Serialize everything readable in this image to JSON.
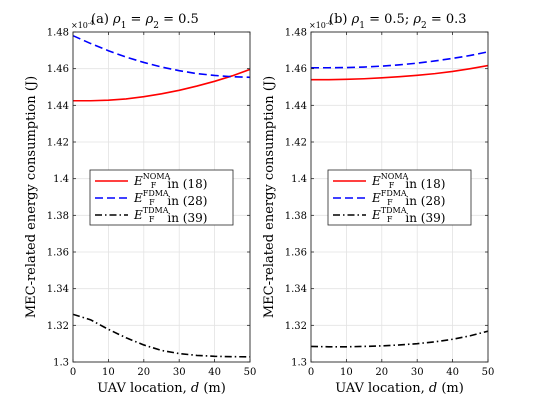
{
  "chart_data": [
    {
      "type": "line",
      "panel_label": "(a)",
      "title_tex": "ρ1 = ρ2 = 0.5",
      "title_parts": [
        "(a) ",
        "ρ",
        "1",
        " = ",
        "ρ",
        "2",
        " = 0.5"
      ],
      "xlabel": "UAV location, d (m)",
      "ylabel": "MEC-related energy consumption (J)",
      "y_exponent": "×10-4",
      "xlim": [
        0,
        50
      ],
      "ylim": [
        1.3,
        1.48
      ],
      "xticks": [
        0,
        10,
        20,
        30,
        40,
        50
      ],
      "yticks": [
        1.3,
        1.32,
        1.34,
        1.36,
        1.38,
        1.4,
        1.42,
        1.44,
        1.46,
        1.48
      ],
      "ytick_labels": [
        "1.3",
        "1.32",
        "1.34",
        "1.36",
        "1.38",
        "1.4",
        "1.42",
        "1.44",
        "1.46",
        "1.48"
      ],
      "grid": true,
      "legend_position": "center",
      "x": [
        0,
        5,
        10,
        15,
        20,
        25,
        30,
        35,
        40,
        45,
        50
      ],
      "series": [
        {
          "name": "E_F^NOMA in (18)",
          "base": "E",
          "sup": "NOMA",
          "sub": "F",
          "suffix": " in (18)",
          "color": "#ff0000",
          "dash": "solid",
          "values": [
            1.4425,
            1.4425,
            1.4428,
            1.4435,
            1.4447,
            1.4463,
            1.4482,
            1.4505,
            1.4531,
            1.4561,
            1.4596
          ]
        },
        {
          "name": "E_F^FDMA in (28)",
          "base": "E",
          "sup": "FDMA",
          "sub": "F",
          "suffix": " in (28)",
          "color": "#0000ff",
          "dash": "dashed",
          "values": [
            1.478,
            1.4737,
            1.4698,
            1.4663,
            1.4634,
            1.4609,
            1.4589,
            1.4573,
            1.4563,
            1.4556,
            1.4553
          ]
        },
        {
          "name": "E_F^TDMA in (39)",
          "base": "E",
          "sup": "TDMA",
          "sub": "F",
          "suffix": " in (39)",
          "color": "#000000",
          "dash": "dashdot",
          "values": [
            1.326,
            1.323,
            1.3178,
            1.3132,
            1.3093,
            1.3063,
            1.3046,
            1.3036,
            1.3031,
            1.3029,
            1.3028
          ]
        }
      ]
    },
    {
      "type": "line",
      "panel_label": "(b)",
      "title_tex": "ρ1 = 0.5; ρ2 = 0.3",
      "title_parts": [
        "(b) ",
        "ρ",
        "1",
        " = 0.5; ",
        "ρ",
        "2",
        " = 0.3"
      ],
      "xlabel": "UAV location, d (m)",
      "ylabel": "MEC-related energy consumption (J)",
      "y_exponent": "×10-4",
      "xlim": [
        0,
        50
      ],
      "ylim": [
        1.3,
        1.48
      ],
      "xticks": [
        0,
        10,
        20,
        30,
        40,
        50
      ],
      "yticks": [
        1.3,
        1.32,
        1.34,
        1.36,
        1.38,
        1.4,
        1.42,
        1.44,
        1.46,
        1.48
      ],
      "ytick_labels": [
        "1.3",
        "1.32",
        "1.34",
        "1.36",
        "1.38",
        "1.4",
        "1.42",
        "1.44",
        "1.46",
        "1.48"
      ],
      "grid": true,
      "legend_position": "center",
      "x": [
        0,
        5,
        10,
        15,
        20,
        25,
        30,
        35,
        40,
        45,
        50
      ],
      "series": [
        {
          "name": "E_F^NOMA in (18)",
          "base": "E",
          "sup": "NOMA",
          "sub": "F",
          "suffix": " in (18)",
          "color": "#ff0000",
          "dash": "solid",
          "values": [
            1.454,
            1.454,
            1.4542,
            1.4545,
            1.455,
            1.4556,
            1.4564,
            1.4573,
            1.4585,
            1.46,
            1.4617
          ]
        },
        {
          "name": "E_F^FDMA in (28)",
          "base": "E",
          "sup": "FDMA",
          "sub": "F",
          "suffix": " in (28)",
          "color": "#0000ff",
          "dash": "dashed",
          "values": [
            1.4605,
            1.4605,
            1.4606,
            1.4609,
            1.4614,
            1.4621,
            1.463,
            1.4642,
            1.4656,
            1.4672,
            1.4692
          ]
        },
        {
          "name": "E_F^TDMA in (39)",
          "base": "E",
          "sup": "TDMA",
          "sub": "F",
          "suffix": " in (39)",
          "color": "#000000",
          "dash": "dashdot",
          "values": [
            1.3085,
            1.3083,
            1.3083,
            1.3085,
            1.3088,
            1.3093,
            1.31,
            1.311,
            1.3124,
            1.3143,
            1.3168
          ]
        }
      ]
    }
  ]
}
